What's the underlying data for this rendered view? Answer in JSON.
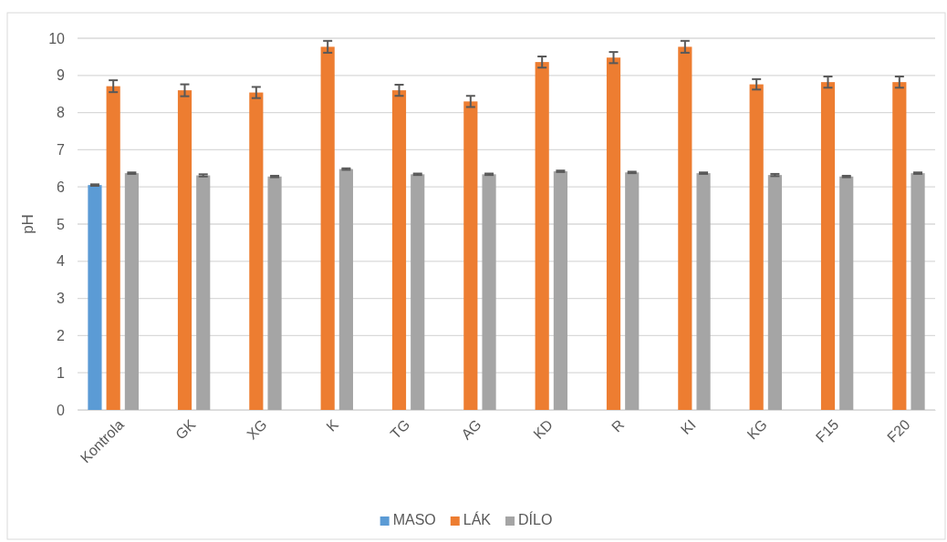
{
  "chart_data": {
    "type": "bar",
    "ylabel": "pH",
    "categories": [
      "Kontrola",
      "GK",
      "XG",
      "K",
      "TG",
      "AG",
      "KD",
      "R",
      "KI",
      "KG",
      "F15",
      "F20"
    ],
    "series": [
      {
        "name": "MASO",
        "color": "#5b9bd5",
        "values": [
          6.05,
          null,
          null,
          null,
          null,
          null,
          null,
          null,
          null,
          null,
          null,
          null
        ],
        "errors": [
          0.02,
          null,
          null,
          null,
          null,
          null,
          null,
          null,
          null,
          null,
          null,
          null
        ]
      },
      {
        "name": "LÁK",
        "color": "#ed7d31",
        "values": [
          8.71,
          8.6,
          8.54,
          9.77,
          8.6,
          8.3,
          9.36,
          9.48,
          9.77,
          8.76,
          8.82,
          8.82
        ],
        "errors": [
          0.16,
          0.16,
          0.15,
          0.16,
          0.15,
          0.15,
          0.15,
          0.15,
          0.16,
          0.14,
          0.15,
          0.15
        ]
      },
      {
        "name": "DÍLO",
        "color": "#a5a5a5",
        "values": [
          6.37,
          6.31,
          6.28,
          6.48,
          6.34,
          6.34,
          6.42,
          6.39,
          6.37,
          6.32,
          6.28,
          6.37
        ],
        "errors": [
          0.02,
          0.03,
          0.02,
          0.02,
          0.02,
          0.02,
          0.02,
          0.02,
          0.02,
          0.03,
          0.02,
          0.02
        ]
      }
    ],
    "ylim": [
      0,
      10
    ],
    "yticks": [
      0,
      1,
      2,
      3,
      4,
      5,
      6,
      7,
      8,
      9,
      10
    ],
    "grid": "y",
    "legend": "bottom"
  }
}
